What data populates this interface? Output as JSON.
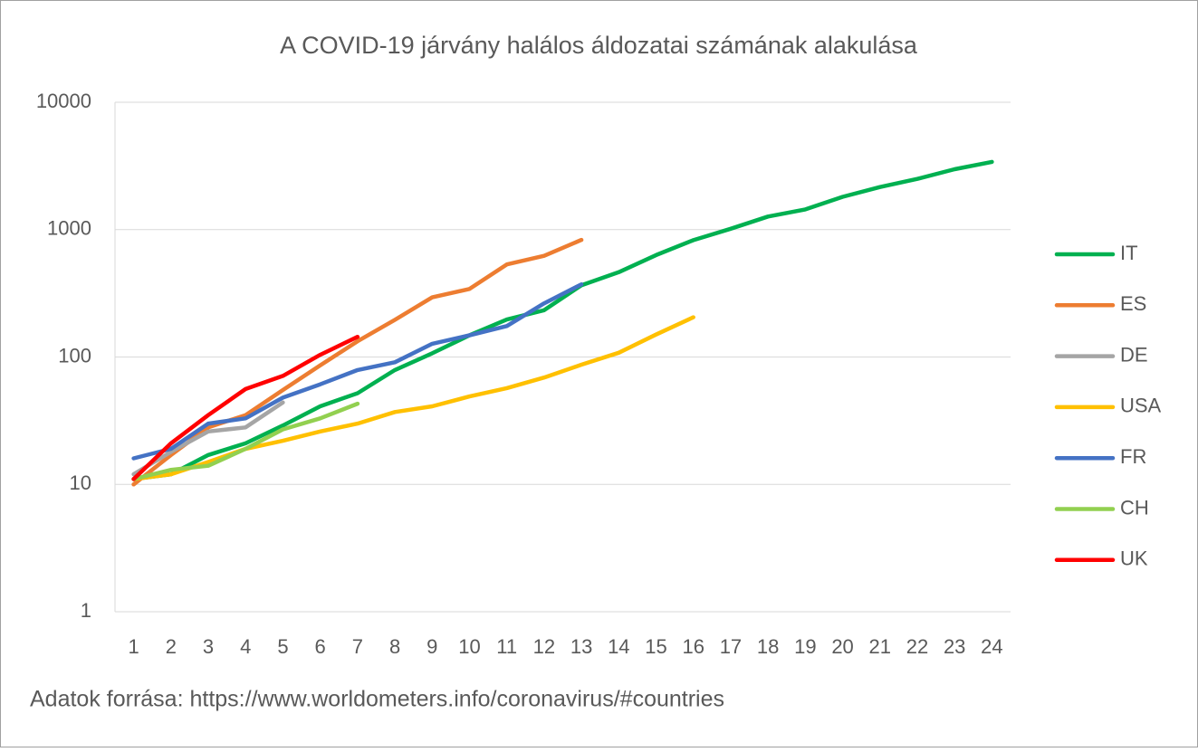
{
  "chart_data": {
    "type": "line",
    "title": "A COVID-19 járvány halálos áldozatai számának alakulása",
    "source": "Adatok forrása: https://www.worldometers.info/coronavirus/#countries",
    "x": [
      1,
      2,
      3,
      4,
      5,
      6,
      7,
      8,
      9,
      10,
      11,
      12,
      13,
      14,
      15,
      16,
      17,
      18,
      19,
      20,
      21,
      22,
      23,
      24
    ],
    "xlim": [
      0.5,
      24.5
    ],
    "yscale": "log",
    "ylim": [
      1,
      10000
    ],
    "yticks": [
      1,
      10,
      100,
      1000,
      10000
    ],
    "grid": true,
    "legend": "right",
    "series": [
      {
        "name": "IT",
        "color": "#00b050",
        "values": [
          11,
          12,
          17,
          21,
          29,
          41,
          52,
          79,
          107,
          148,
          197,
          233,
          366,
          463,
          631,
          827,
          1016,
          1266,
          1441,
          1809,
          2158,
          2503,
          2978,
          3405
        ]
      },
      {
        "name": "ES",
        "color": "#ed7d31",
        "values": [
          10,
          17,
          28,
          35,
          55,
          86,
          133,
          196,
          294,
          342,
          533,
          623,
          830,
          null,
          null,
          null,
          null,
          null,
          null,
          null,
          null,
          null,
          null,
          null
        ]
      },
      {
        "name": "DE",
        "color": "#a5a5a5",
        "values": [
          12,
          18,
          26,
          28,
          44,
          null,
          null,
          null,
          null,
          null,
          null,
          null,
          null,
          null,
          null,
          null,
          null,
          null,
          null,
          null,
          null,
          null,
          null,
          null
        ]
      },
      {
        "name": "USA",
        "color": "#ffc000",
        "values": [
          11,
          12,
          15,
          19,
          22,
          26,
          30,
          37,
          41,
          49,
          57,
          69,
          87,
          108,
          150,
          205,
          null,
          null,
          null,
          null,
          null,
          null,
          null,
          null
        ]
      },
      {
        "name": "FR",
        "color": "#4472c4",
        "values": [
          16,
          19,
          30,
          33,
          48,
          61,
          79,
          91,
          127,
          148,
          175,
          264,
          372,
          null,
          null,
          null,
          null,
          null,
          null,
          null,
          null,
          null,
          null,
          null
        ]
      },
      {
        "name": "CH",
        "color": "#92d050",
        "values": [
          11,
          13,
          14,
          19,
          27,
          33,
          43,
          null,
          null,
          null,
          null,
          null,
          null,
          null,
          null,
          null,
          null,
          null,
          null,
          null,
          null,
          null,
          null,
          null
        ]
      },
      {
        "name": "UK",
        "color": "#ff0000",
        "values": [
          11,
          21,
          35,
          56,
          71,
          104,
          144,
          null,
          null,
          null,
          null,
          null,
          null,
          null,
          null,
          null,
          null,
          null,
          null,
          null,
          null,
          null,
          null,
          null
        ]
      }
    ]
  }
}
